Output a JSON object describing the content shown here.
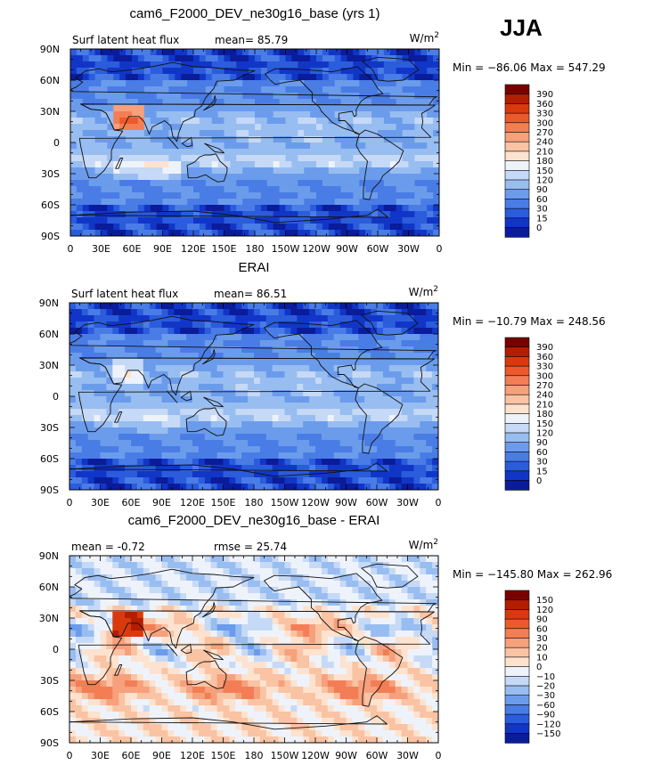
{
  "season": "JJA",
  "chart_data": [
    {
      "type": "heatmap",
      "title": "cam6_F2000_DEV_ne30g16_base (yrs 1)",
      "subtitle_left": "Surf latent heat flux",
      "subtitle_stat": "mean=  85.79",
      "units_base": "W/m",
      "units_exp": "2",
      "range_text": "Min = −86.06 Max = 547.29",
      "min": -86.06,
      "max": 547.29,
      "mean": 85.79,
      "xticklabels": [
        "0",
        "30E",
        "60E",
        "90E",
        "120E",
        "150E",
        "180",
        "150W",
        "120W",
        "90W",
        "60W",
        "30W",
        "0"
      ],
      "yticklabels": [
        "90N",
        "60N",
        "30N",
        "0",
        "30S",
        "60S",
        "90S"
      ],
      "colorbar": {
        "levels": [
          "390",
          "360",
          "330",
          "300",
          "270",
          "240",
          "210",
          "180",
          "150",
          "120",
          "90",
          "60",
          "30",
          "15",
          "0"
        ],
        "colors": [
          "#7a0000",
          "#b31d00",
          "#d83a0e",
          "#ec5a2c",
          "#f37e55",
          "#f6a07c",
          "#f9c3a4",
          "#fde3cf",
          "#eef3fb",
          "#c6d9f6",
          "#98bdf0",
          "#6b9cec",
          "#4a7ce6",
          "#2b5cdc",
          "#1136c7",
          "#0a1c9a"
        ],
        "top_index": 6
      }
    },
    {
      "type": "heatmap",
      "title": "ERAI",
      "subtitle_left": "Surf latent heat flux",
      "subtitle_stat": "mean=  86.51",
      "units_base": "W/m",
      "units_exp": "2",
      "range_text": "Min = −10.79 Max = 248.56",
      "min": -10.79,
      "max": 248.56,
      "mean": 86.51,
      "xticklabels": [
        "0",
        "30E",
        "60E",
        "90E",
        "120E",
        "150E",
        "180",
        "150W",
        "120W",
        "90W",
        "60W",
        "30W",
        "0"
      ],
      "yticklabels": [
        "90N",
        "60N",
        "30N",
        "0",
        "30S",
        "60S",
        "90S"
      ],
      "colorbar": {
        "levels": [
          "390",
          "360",
          "330",
          "300",
          "270",
          "240",
          "210",
          "180",
          "150",
          "120",
          "90",
          "60",
          "30",
          "15",
          "0"
        ],
        "colors": [
          "#7a0000",
          "#b31d00",
          "#d83a0e",
          "#ec5a2c",
          "#f37e55",
          "#f6a07c",
          "#f9c3a4",
          "#fde3cf",
          "#eef3fb",
          "#c6d9f6",
          "#98bdf0",
          "#6b9cec",
          "#4a7ce6",
          "#2b5cdc",
          "#1136c7",
          "#0a1c9a"
        ],
        "top_index": 6
      }
    },
    {
      "type": "heatmap",
      "title": "cam6_F2000_DEV_ne30g16_base - ERAI",
      "subtitle_left": "mean =   -0.72",
      "subtitle_stat": "rmse =   25.74",
      "units_base": "W/m",
      "units_exp": "2",
      "range_text": "Min = −145.80 Max = 262.96",
      "min": -145.8,
      "max": 262.96,
      "mean": -0.72,
      "rmse": 25.74,
      "xticklabels": [
        "0",
        "30E",
        "60E",
        "90E",
        "120E",
        "150E",
        "180",
        "150W",
        "120W",
        "90W",
        "60W",
        "30W",
        "0"
      ],
      "yticklabels": [
        "90N",
        "60N",
        "30N",
        "0",
        "30S",
        "60S",
        "90S"
      ],
      "colorbar": {
        "levels": [
          "150",
          "120",
          "90",
          "60",
          "30",
          "20",
          "10",
          "0",
          "−10",
          "−20",
          "−30",
          "−60",
          "−90",
          "−120",
          "−150"
        ],
        "colors": [
          "#7a0000",
          "#b31d00",
          "#d83a0e",
          "#ec5a2c",
          "#f37e55",
          "#f6a07c",
          "#f9c3a4",
          "#fde3cf",
          "#eef3fb",
          "#c6d9f6",
          "#98bdf0",
          "#6b9cec",
          "#4a7ce6",
          "#2b5cdc",
          "#1136c7",
          "#0a1c9a"
        ],
        "top_index": 7
      }
    }
  ]
}
